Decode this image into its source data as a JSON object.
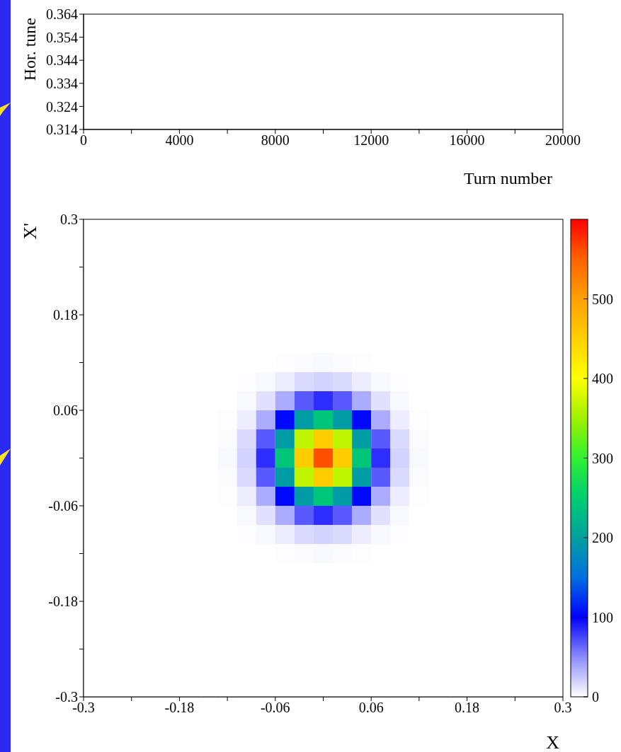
{
  "chart_data": [
    {
      "type": "line",
      "xlabel": "Turn number",
      "ylabel": "Hor. tune",
      "xlim": [
        0,
        20000
      ],
      "xticks": [
        0,
        {
          "value": 2000,
          "label": null
        },
        4000,
        {
          "value": 6000,
          "label": null
        },
        8000,
        {
          "value": 10000,
          "label": null
        },
        12000,
        {
          "value": 14000,
          "label": null
        },
        16000,
        {
          "value": 18000,
          "label": null
        },
        20000
      ],
      "ylim": [
        0.314,
        0.364
      ],
      "yticks": [
        0.314,
        0.324,
        0.334,
        0.344,
        0.354,
        0.364
      ],
      "grid": false,
      "legend": false
    },
    {
      "type": "heatmap",
      "xlabel": "X",
      "ylabel": "X'",
      "x": [
        -0.288,
        -0.264,
        -0.24,
        -0.216,
        -0.192,
        -0.168,
        -0.144,
        -0.12,
        -0.096,
        -0.072,
        -0.048,
        -0.024,
        0,
        0.024,
        0.048,
        0.072,
        0.096,
        0.12,
        0.144,
        0.168,
        0.192,
        0.216,
        0.24,
        0.264,
        0.288
      ],
      "y": [
        0.288,
        0.264,
        0.24,
        0.216,
        0.192,
        0.168,
        0.144,
        0.12,
        0.096,
        0.072,
        0.048,
        0.024,
        0,
        -0.024,
        -0.048,
        -0.072,
        -0.096,
        -0.12,
        -0.144,
        -0.168,
        -0.192,
        -0.216,
        -0.24,
        -0.264,
        -0.288
      ],
      "cells": [
        [
          0,
          0,
          0,
          0,
          0,
          0,
          0,
          0,
          0,
          0,
          0,
          0,
          0,
          0,
          0,
          0,
          0,
          0,
          0,
          0,
          0,
          0,
          0,
          0,
          0
        ],
        [
          0,
          0,
          0,
          0,
          0,
          0,
          0,
          0,
          0,
          0,
          0,
          0,
          0,
          0,
          0,
          0,
          0,
          0,
          0,
          0,
          0,
          0,
          0,
          0,
          0
        ],
        [
          0,
          0,
          0,
          0,
          0,
          0,
          0,
          0,
          0,
          0,
          0,
          0,
          0,
          0,
          0,
          0,
          0,
          0,
          0,
          0,
          0,
          0,
          0,
          0,
          0
        ],
        [
          0,
          0,
          0,
          0,
          0,
          0,
          0,
          0,
          0,
          0,
          0,
          0,
          0,
          0,
          0,
          0,
          0,
          0,
          0,
          0,
          0,
          0,
          0,
          0,
          0
        ],
        [
          0,
          0,
          0,
          0,
          0,
          0,
          0,
          0,
          0,
          0,
          0,
          0,
          0,
          0,
          0,
          0,
          0,
          0,
          0,
          0,
          0,
          0,
          0,
          0,
          0
        ],
        [
          0,
          0,
          0,
          0,
          0,
          0,
          0,
          0,
          0,
          0,
          0,
          0,
          0,
          0,
          0,
          0,
          0,
          0,
          0,
          0,
          0,
          0,
          0,
          0,
          0
        ],
        [
          0,
          0,
          0,
          0,
          0,
          0,
          0,
          0,
          0,
          0,
          0,
          0,
          0,
          0,
          0,
          0,
          0,
          0,
          0,
          0,
          0,
          0,
          0,
          0,
          0
        ],
        [
          0,
          0,
          0,
          0,
          0,
          0,
          0,
          0,
          0,
          0,
          1,
          2,
          3,
          2,
          1,
          0,
          0,
          0,
          0,
          0,
          0,
          0,
          0,
          0,
          0
        ],
        [
          0,
          0,
          0,
          0,
          0,
          0,
          0,
          0,
          1,
          3,
          8,
          16,
          19,
          16,
          8,
          3,
          1,
          0,
          0,
          0,
          0,
          0,
          0,
          0,
          0
        ],
        [
          0,
          0,
          0,
          0,
          0,
          0,
          0,
          0,
          3,
          13,
          36,
          68,
          84,
          68,
          36,
          13,
          3,
          0,
          0,
          0,
          0,
          0,
          0,
          0,
          0
        ],
        [
          0,
          0,
          0,
          0,
          0,
          0,
          0,
          1,
          8,
          36,
          104,
          196,
          241,
          196,
          104,
          36,
          8,
          1,
          0,
          0,
          0,
          0,
          0,
          0,
          0
        ],
        [
          0,
          0,
          0,
          0,
          0,
          0,
          0,
          2,
          16,
          68,
          196,
          367,
          454,
          367,
          196,
          68,
          16,
          2,
          0,
          0,
          0,
          0,
          0,
          0,
          0
        ],
        [
          0,
          0,
          0,
          0,
          0,
          0,
          0,
          3,
          19,
          84,
          241,
          454,
          560,
          454,
          241,
          84,
          19,
          3,
          0,
          0,
          0,
          0,
          0,
          0,
          0
        ],
        [
          0,
          0,
          0,
          0,
          0,
          0,
          0,
          2,
          16,
          68,
          196,
          367,
          454,
          367,
          196,
          68,
          16,
          2,
          0,
          0,
          0,
          0,
          0,
          0,
          0
        ],
        [
          0,
          0,
          0,
          0,
          0,
          0,
          0,
          1,
          8,
          36,
          104,
          196,
          241,
          196,
          104,
          36,
          8,
          1,
          0,
          0,
          0,
          0,
          0,
          0,
          0
        ],
        [
          0,
          0,
          0,
          0,
          0,
          0,
          0,
          0,
          3,
          13,
          36,
          68,
          84,
          68,
          36,
          13,
          3,
          0,
          0,
          0,
          0,
          0,
          0,
          0,
          0
        ],
        [
          0,
          0,
          0,
          0,
          0,
          0,
          0,
          0,
          1,
          3,
          8,
          16,
          19,
          16,
          8,
          3,
          1,
          0,
          0,
          0,
          0,
          0,
          0,
          0,
          0
        ],
        [
          0,
          0,
          0,
          0,
          0,
          0,
          0,
          0,
          0,
          0,
          1,
          2,
          3,
          2,
          1,
          0,
          0,
          0,
          0,
          0,
          0,
          0,
          0,
          0,
          0
        ],
        [
          0,
          0,
          0,
          0,
          0,
          0,
          0,
          0,
          0,
          0,
          0,
          0,
          0,
          0,
          0,
          0,
          0,
          0,
          0,
          0,
          0,
          0,
          0,
          0,
          0
        ],
        [
          0,
          0,
          0,
          0,
          0,
          0,
          0,
          0,
          0,
          0,
          0,
          0,
          0,
          0,
          0,
          0,
          0,
          0,
          0,
          0,
          0,
          0,
          0,
          0,
          0
        ],
        [
          0,
          0,
          0,
          0,
          0,
          0,
          0,
          0,
          0,
          0,
          0,
          0,
          0,
          0,
          0,
          0,
          0,
          0,
          0,
          0,
          0,
          0,
          0,
          0,
          0
        ],
        [
          0,
          0,
          0,
          0,
          0,
          0,
          0,
          0,
          0,
          0,
          0,
          0,
          0,
          0,
          0,
          0,
          0,
          0,
          0,
          0,
          0,
          0,
          0,
          0,
          0
        ],
        [
          0,
          0,
          0,
          0,
          0,
          0,
          0,
          0,
          0,
          0,
          0,
          0,
          0,
          0,
          0,
          0,
          0,
          0,
          0,
          0,
          0,
          0,
          0,
          0,
          0
        ],
        [
          0,
          0,
          0,
          0,
          0,
          0,
          0,
          0,
          0,
          0,
          0,
          0,
          0,
          0,
          0,
          0,
          0,
          0,
          0,
          0,
          0,
          0,
          0,
          0,
          0
        ],
        [
          0,
          0,
          0,
          0,
          0,
          0,
          0,
          0,
          0,
          0,
          0,
          0,
          0,
          0,
          0,
          0,
          0,
          0,
          0,
          0,
          0,
          0,
          0,
          0,
          0
        ]
      ],
      "xlim": [
        -0.3,
        0.3
      ],
      "xticks": [
        -0.3,
        {
          "value": -0.24,
          "label": null
        },
        -0.18,
        {
          "value": -0.12,
          "label": null
        },
        -0.06,
        {
          "value": 0,
          "label": null
        },
        0.06,
        {
          "value": 0.12,
          "label": null
        },
        0.18,
        {
          "value": 0.24,
          "label": null
        },
        0.3
      ],
      "ylim": [
        -0.3,
        0.3
      ],
      "yticks": [
        -0.3,
        {
          "value": -0.24,
          "label": null
        },
        -0.18,
        {
          "value": -0.12,
          "label": null
        },
        -0.06,
        {
          "value": 0,
          "label": null
        },
        0.06,
        {
          "value": 0.12,
          "label": null
        },
        0.18,
        {
          "value": 0.24,
          "label": null
        },
        0.3
      ],
      "clim": [
        0,
        600
      ],
      "cticks": [
        0,
        100,
        200,
        300,
        400,
        500
      ]
    }
  ]
}
